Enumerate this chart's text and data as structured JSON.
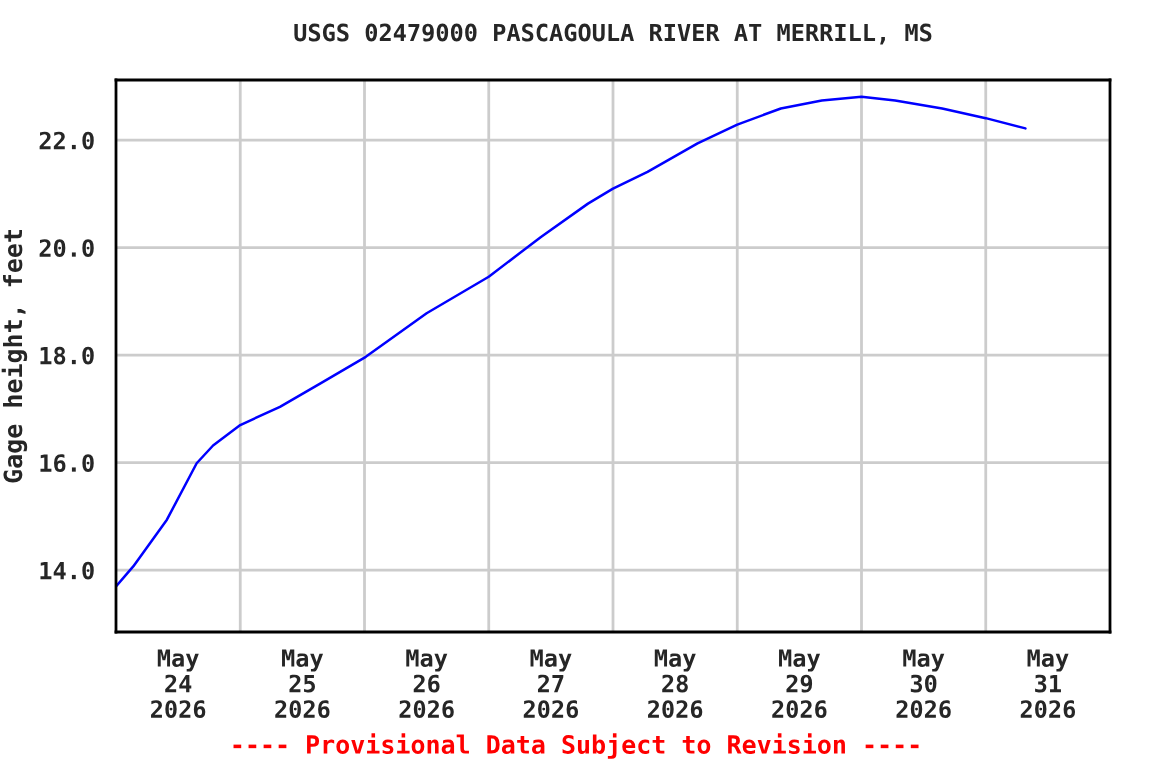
{
  "chart_data": {
    "type": "line",
    "title": "USGS 02479000 PASCAGOULA RIVER AT MERRILL, MS",
    "ylabel": "Gage height, feet",
    "x": [
      "2026-05-24T00:00",
      "2026-05-24T03:20",
      "2026-05-24T09:50",
      "2026-05-24T15:35",
      "2026-05-24T18:45",
      "2026-05-25T00:00",
      "2026-05-25T07:40",
      "2026-05-25T15:35",
      "2026-05-26T00:15",
      "2026-05-26T12:00",
      "2026-05-27T00:00",
      "2026-05-27T10:05",
      "2026-05-27T19:10",
      "2026-05-28T00:00",
      "2026-05-28T06:40",
      "2026-05-28T16:20",
      "2026-05-29T00:00",
      "2026-05-29T08:25",
      "2026-05-29T16:20",
      "2026-05-30T00:00",
      "2026-05-30T06:30",
      "2026-05-30T15:35",
      "2026-05-31T00:00",
      "2026-05-31T07:40"
    ],
    "series": [
      {
        "color": "#0000ff",
        "values": [
          13.7,
          14.07,
          14.94,
          15.99,
          16.32,
          16.7,
          17.04,
          17.48,
          17.97,
          18.78,
          19.46,
          20.2,
          20.82,
          21.1,
          21.41,
          21.94,
          22.29,
          22.59,
          22.74,
          22.81,
          22.74,
          22.59,
          22.41,
          22.22
        ]
      }
    ],
    "xlim": [
      "2026-05-24T00:00",
      "2026-06-01T00:00"
    ],
    "xticks": [
      {
        "value": "2026-05-24T12:00",
        "label": "May\n24\n2026"
      },
      {
        "value": "2026-05-25T12:00",
        "label": "May\n25\n2026"
      },
      {
        "value": "2026-05-26T12:00",
        "label": "May\n26\n2026"
      },
      {
        "value": "2026-05-27T12:00",
        "label": "May\n27\n2026"
      },
      {
        "value": "2026-05-28T12:00",
        "label": "May\n28\n2026"
      },
      {
        "value": "2026-05-29T12:00",
        "label": "May\n29\n2026"
      },
      {
        "value": "2026-05-30T12:00",
        "label": "May\n30\n2026"
      },
      {
        "value": "2026-05-31T12:00",
        "label": "May\n31\n2026"
      },
      {
        "value": "2026-05-25T00:00",
        "label": null
      },
      {
        "value": "2026-05-26T00:00",
        "label": null
      },
      {
        "value": "2026-05-27T00:00",
        "label": null
      },
      {
        "value": "2026-05-28T00:00",
        "label": null
      },
      {
        "value": "2026-05-29T00:00",
        "label": null
      },
      {
        "value": "2026-05-30T00:00",
        "label": null
      },
      {
        "value": "2026-05-31T00:00",
        "label": null
      }
    ],
    "ylim": [
      12.85,
      23.12
    ],
    "yticks": [
      {
        "value": 14,
        "label": "14.0"
      },
      {
        "value": 16,
        "label": "16.0"
      },
      {
        "value": 18,
        "label": "18.0"
      },
      {
        "value": 20,
        "label": "20.0"
      },
      {
        "value": 22,
        "label": "22.0"
      }
    ],
    "grid": true,
    "marker": "none",
    "line_style": "solid",
    "annotations": [
      "---- Provisional Data Subject to Revision ----"
    ]
  }
}
